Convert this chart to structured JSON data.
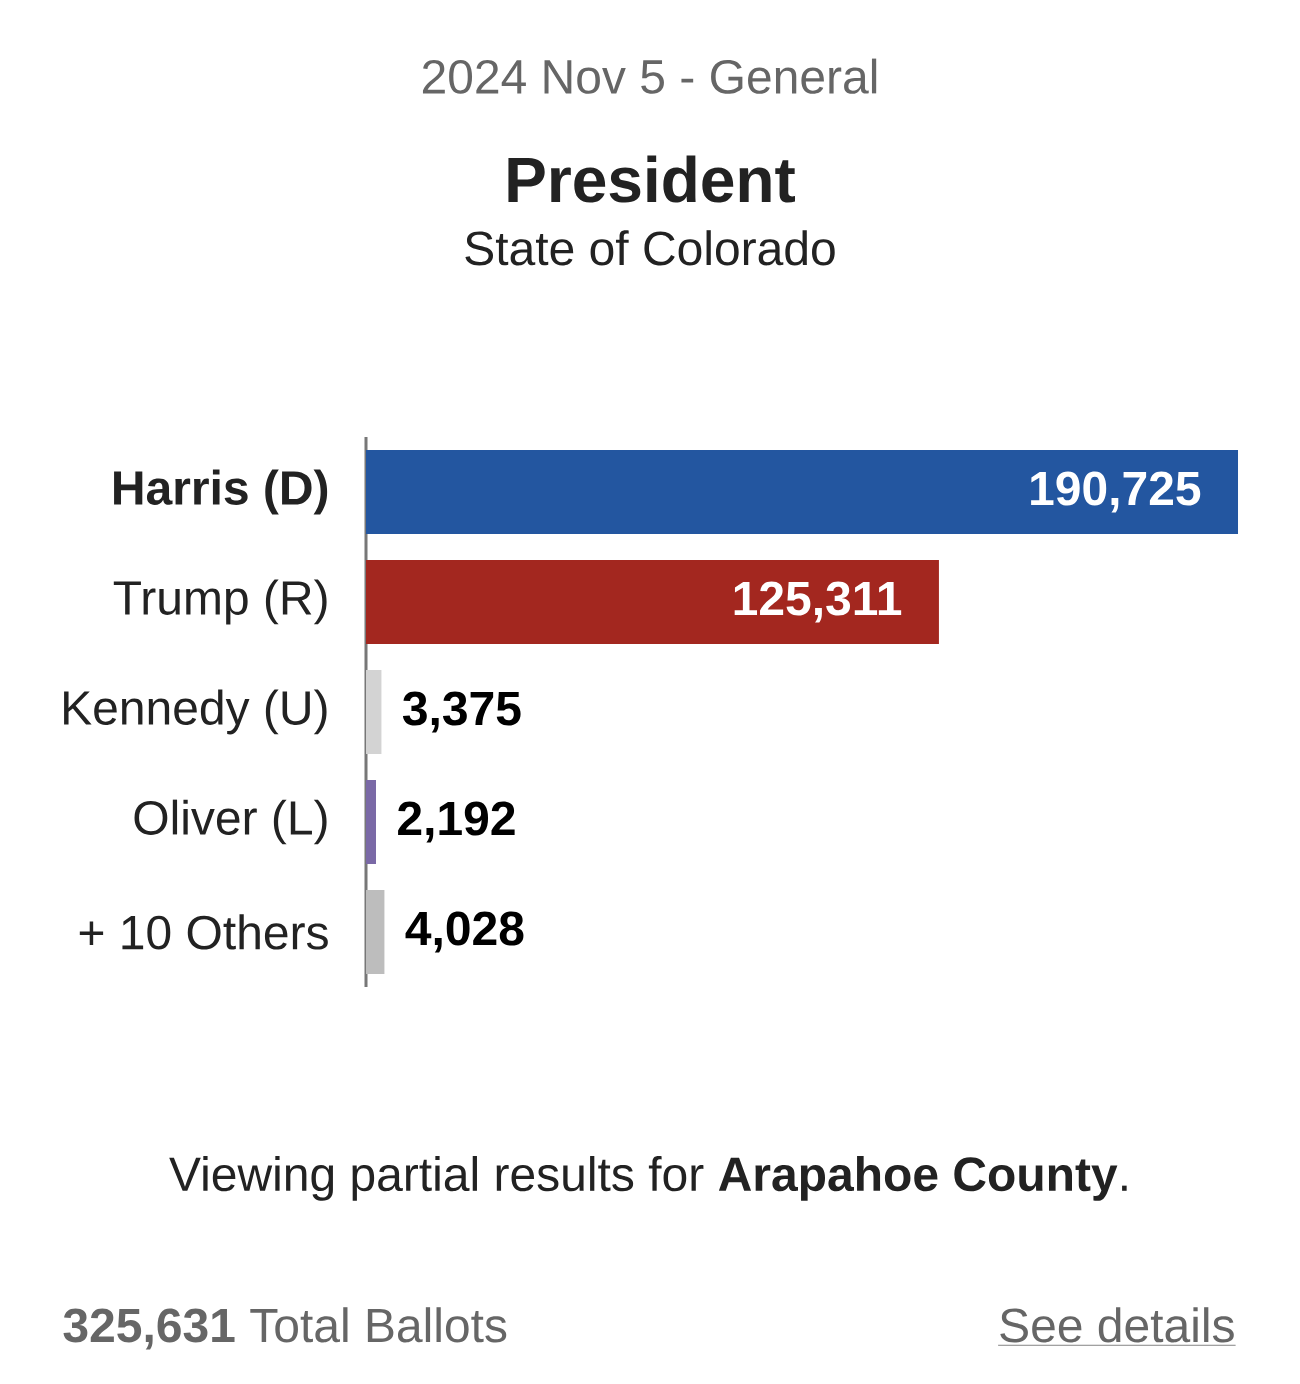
{
  "chart_data": {
    "type": "bar",
    "orientation": "horizontal",
    "title": "President",
    "subtitle": "State of Colorado",
    "categories": [
      "**Harris (D)**",
      "Trump (R)",
      "Kennedy (U)",
      "Oliver (L)",
      "+ 10 Others"
    ],
    "values": [
      190725,
      125311,
      3375,
      2192,
      4028
    ],
    "value_labels": [
      "190,725",
      "125,311",
      "3,375",
      "2,192",
      "4,028"
    ],
    "colors": [
      "#2356a0",
      "#a3271f",
      "#d3d3d3",
      "#7a69a6",
      "#bdbdbd"
    ],
    "tick_labels": "y",
    "annotations": [
      "2024 Nov 5 - General",
      "Viewing partial results for **Arapahoe County**.",
      "**325,631** Total Ballots",
      "See details"
    ]
  }
}
